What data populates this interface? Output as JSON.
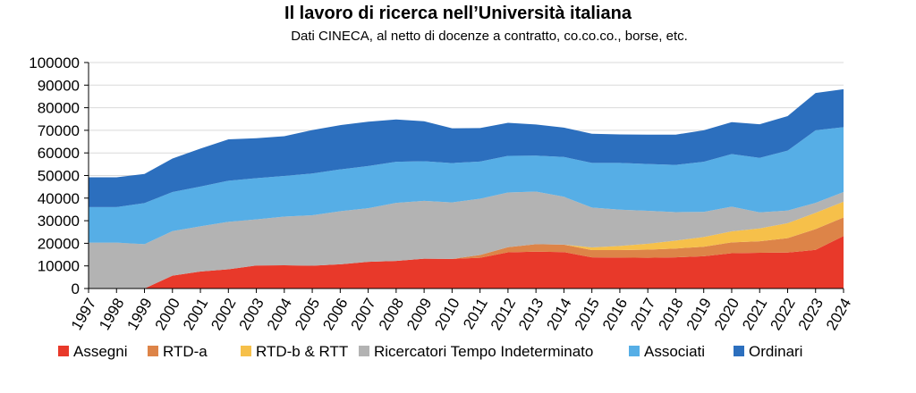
{
  "chart_data": {
    "type": "area",
    "stacked": true,
    "title": "Il lavoro di ricerca nell’Università italiana",
    "subtitle": "Dati CINECA, al netto di docenze a contratto, co.co.co., borse, etc.",
    "xlabel": "",
    "ylabel": "",
    "ylim": [
      0,
      100000
    ],
    "yticks": [
      "0",
      "10000",
      "20000",
      "30000",
      "40000",
      "50000",
      "60000",
      "70000",
      "80000",
      "90000",
      "100000"
    ],
    "ytick_values": [
      0,
      10000,
      20000,
      30000,
      40000,
      50000,
      60000,
      70000,
      80000,
      90000,
      100000
    ],
    "x": [
      "1997",
      "1998",
      "1999",
      "2000",
      "2001",
      "2002",
      "2003",
      "2004",
      "2005",
      "2006",
      "2007",
      "2008",
      "2009",
      "2010",
      "2011",
      "2012",
      "2013",
      "2014",
      "2015",
      "2016",
      "2017",
      "2018",
      "2019",
      "2020",
      "2021",
      "2022",
      "2023",
      "2024"
    ],
    "grid": "horizontal",
    "legend_position": "bottom",
    "series": [
      {
        "name": "Assegni",
        "color": "#e8392a",
        "values": [
          0,
          0,
          0,
          5700,
          7500,
          8500,
          10200,
          10300,
          10100,
          10700,
          11800,
          12200,
          13200,
          13100,
          13600,
          16000,
          16300,
          16100,
          13800,
          13700,
          13600,
          13800,
          14300,
          15600,
          15800,
          15900,
          17100,
          23200
        ]
      },
      {
        "name": "RTD-a",
        "color": "#dd8448",
        "values": [
          0,
          0,
          0,
          0,
          0,
          0,
          0,
          0,
          0,
          0,
          0,
          0,
          0,
          0,
          1200,
          2300,
          3300,
          3300,
          3200,
          3300,
          3600,
          3900,
          4200,
          4800,
          5100,
          6400,
          9200,
          8200
        ]
      },
      {
        "name": "RTD-b & RTT",
        "color": "#f6c04a",
        "values": [
          0,
          0,
          0,
          0,
          0,
          0,
          0,
          0,
          0,
          0,
          0,
          0,
          0,
          0,
          0,
          0,
          0,
          0,
          1200,
          1800,
          2600,
          3500,
          4300,
          4900,
          5700,
          6600,
          7200,
          7000
        ]
      },
      {
        "name": "Ricercatori Tempo Indeterminato",
        "color": "#b3b3b3",
        "values": [
          20300,
          20300,
          19600,
          19700,
          20000,
          21000,
          20400,
          21500,
          22300,
          23500,
          23700,
          25700,
          25600,
          25000,
          24900,
          24200,
          23300,
          21200,
          17600,
          16100,
          14600,
          12600,
          11100,
          10900,
          7100,
          5600,
          4400,
          4300
        ]
      },
      {
        "name": "Associati",
        "color": "#56aee6",
        "values": [
          15700,
          15700,
          18200,
          17300,
          17600,
          18200,
          18200,
          18000,
          18500,
          18500,
          18700,
          18200,
          17500,
          17400,
          16500,
          16200,
          15900,
          17600,
          19800,
          20700,
          20700,
          20900,
          22200,
          23300,
          24100,
          26500,
          32100,
          28700
        ]
      },
      {
        "name": "Ordinari",
        "color": "#2c6fbe",
        "values": [
          13200,
          13200,
          12900,
          14800,
          16800,
          18300,
          17700,
          17600,
          19200,
          19600,
          19600,
          18700,
          17700,
          15400,
          14800,
          14600,
          13800,
          13000,
          12900,
          12600,
          13000,
          13400,
          13900,
          14100,
          14900,
          15300,
          16500,
          16800
        ]
      }
    ]
  }
}
